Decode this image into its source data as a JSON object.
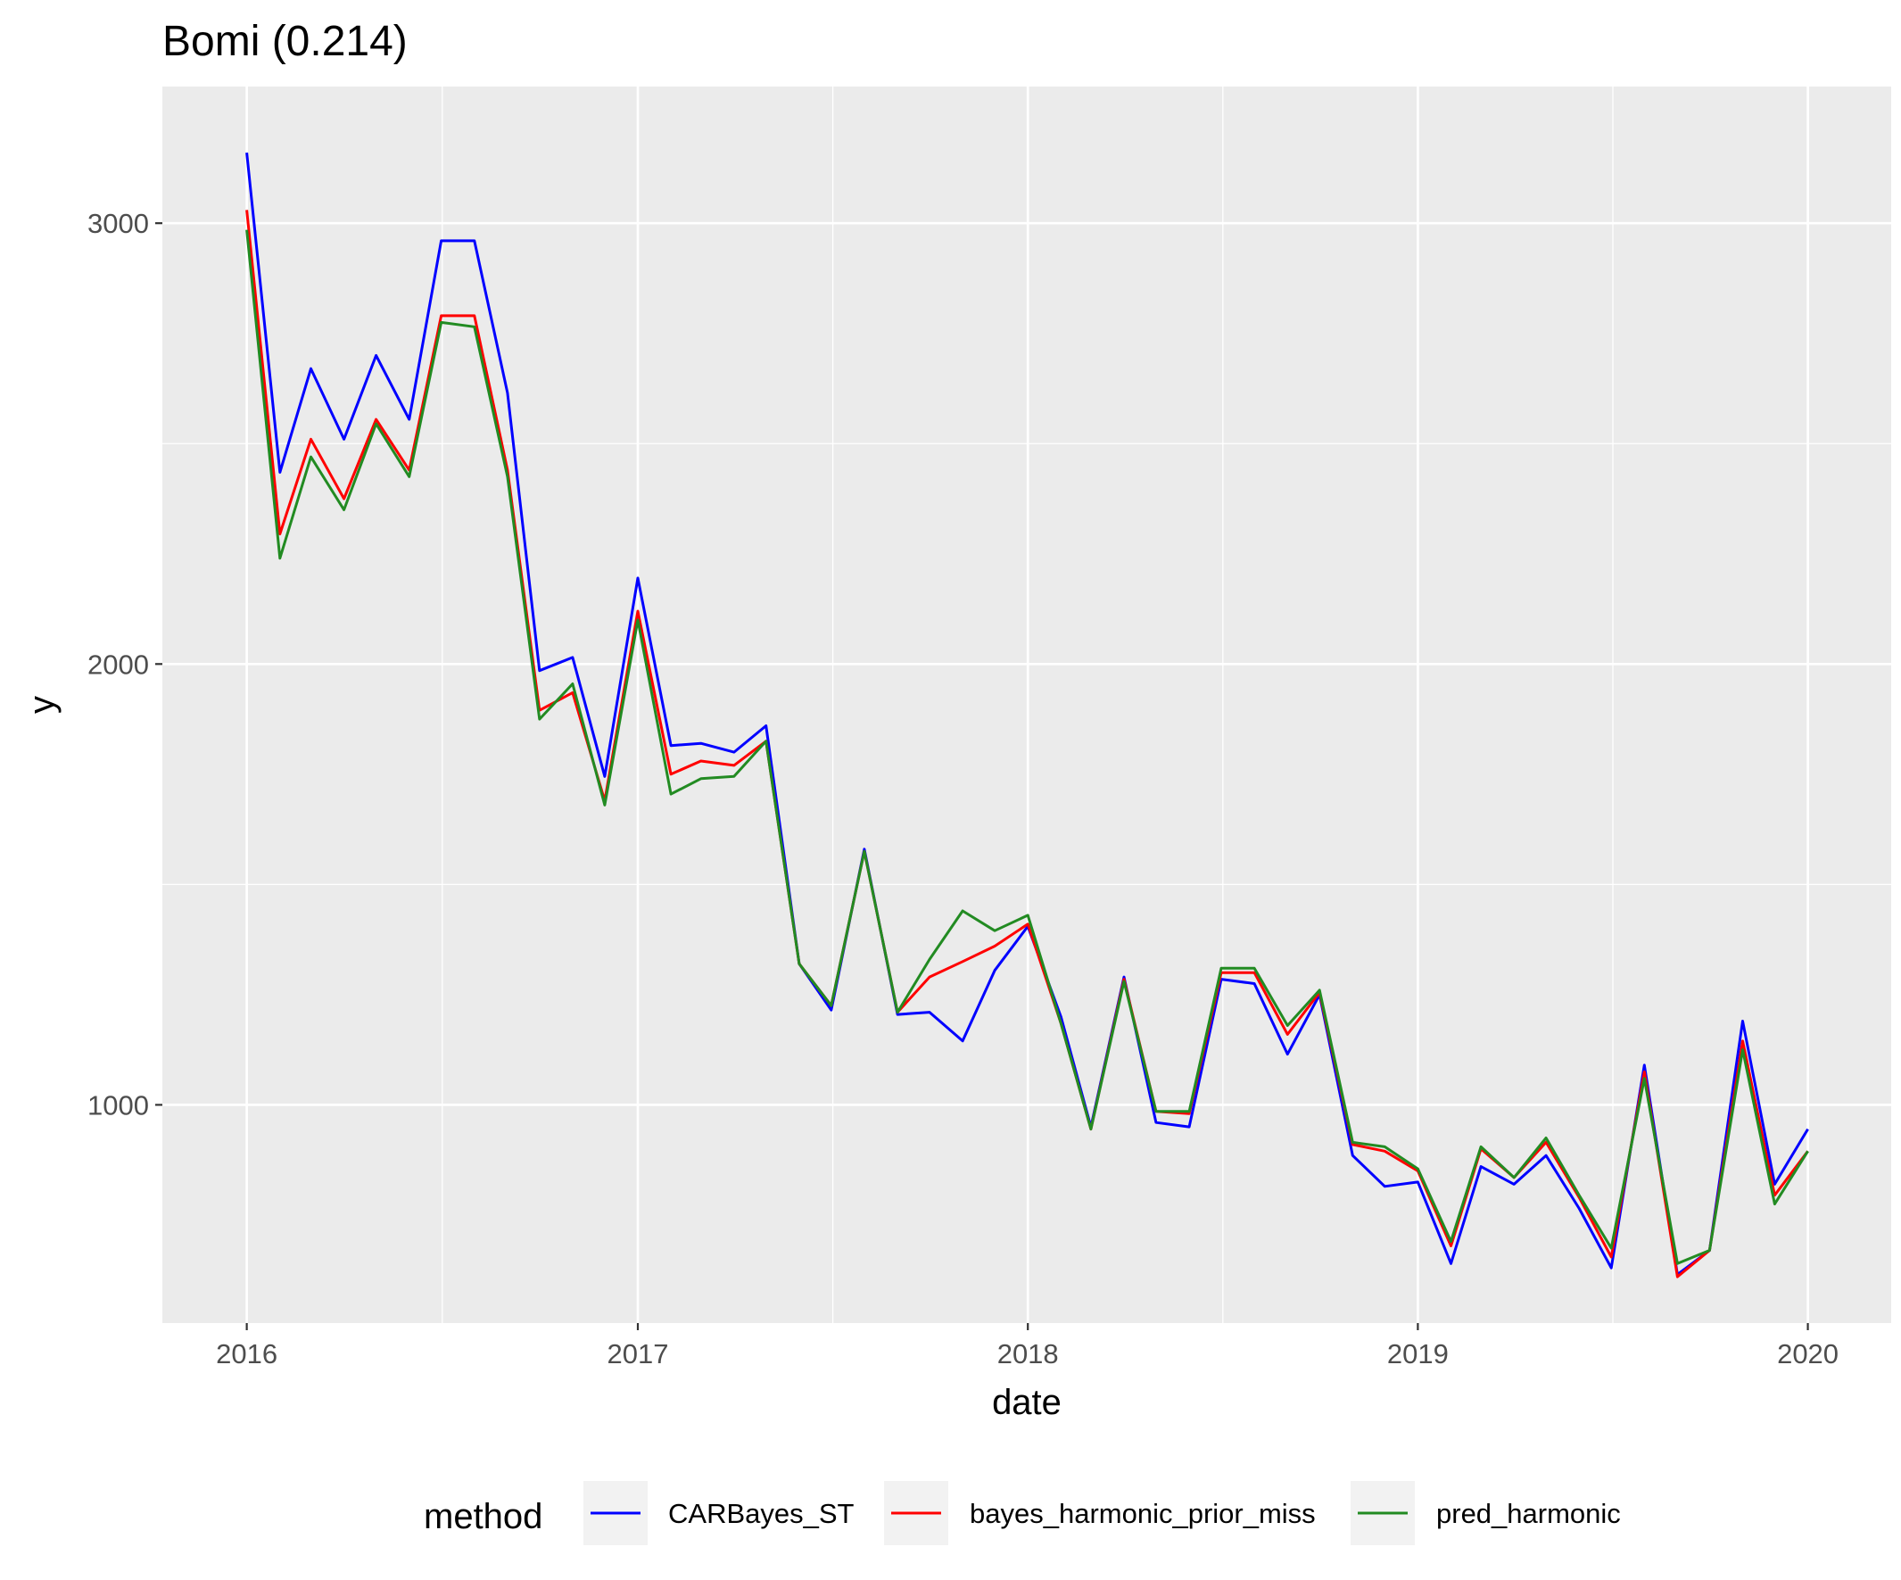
{
  "chart_data": {
    "type": "line",
    "title": "Bomi (0.214)",
    "xlabel": "date",
    "ylabel": "y",
    "xlim": [
      "2015-10-14",
      "2020-03-19"
    ],
    "ylim": [
      505,
      3310
    ],
    "x_ticks": [
      "2016-01-01",
      "2017-01-01",
      "2018-01-01",
      "2019-01-01",
      "2020-01-01"
    ],
    "x_tick_labels": [
      "2016",
      "2017",
      "2018",
      "2019",
      "2020"
    ],
    "y_ticks": [
      1000,
      2000,
      3000
    ],
    "y_tick_labels": [
      "1000",
      "2000",
      "3000"
    ],
    "grid": true,
    "legend": {
      "title": "method",
      "position": "bottom"
    },
    "x": [
      "2016-01-01",
      "2016-02-01",
      "2016-03-01",
      "2016-04-01",
      "2016-05-01",
      "2016-06-01",
      "2016-07-01",
      "2016-08-01",
      "2016-09-01",
      "2016-10-01",
      "2016-11-01",
      "2016-12-01",
      "2017-01-01",
      "2017-02-01",
      "2017-03-01",
      "2017-04-01",
      "2017-05-01",
      "2017-06-01",
      "2017-07-01",
      "2017-08-01",
      "2017-09-01",
      "2017-10-01",
      "2017-11-01",
      "2017-12-01",
      "2018-01-01",
      "2018-02-01",
      "2018-03-01",
      "2018-04-01",
      "2018-05-01",
      "2018-06-01",
      "2018-07-01",
      "2018-08-01",
      "2018-09-01",
      "2018-10-01",
      "2018-11-01",
      "2018-12-01",
      "2019-01-01",
      "2019-02-01",
      "2019-03-01",
      "2019-04-01",
      "2019-05-01",
      "2019-06-01",
      "2019-07-01",
      "2019-08-01",
      "2019-09-01",
      "2019-10-01",
      "2019-11-01",
      "2019-12-01",
      "2020-01-01"
    ],
    "series": [
      {
        "name": "CARBayes_ST",
        "color": "#0000ff",
        "values": [
          3160,
          2435,
          2670,
          2510,
          2700,
          2555,
          2960,
          2960,
          2615,
          1985,
          2015,
          1745,
          2195,
          1815,
          1820,
          1800,
          1860,
          1320,
          1215,
          1580,
          1205,
          1210,
          1145,
          1305,
          1405,
          1200,
          950,
          1290,
          960,
          950,
          1285,
          1275,
          1115,
          1250,
          885,
          815,
          825,
          640,
          860,
          820,
          885,
          765,
          630,
          1090,
          615,
          670,
          1190,
          820,
          945
        ]
      },
      {
        "name": "bayes_harmonic_prior_miss",
        "color": "#ff0000",
        "values": [
          3030,
          2295,
          2510,
          2375,
          2555,
          2440,
          2790,
          2790,
          2440,
          1895,
          1935,
          1690,
          2120,
          1750,
          1780,
          1770,
          1825,
          1320,
          1225,
          1575,
          1210,
          1290,
          1325,
          1360,
          1410,
          1185,
          945,
          1285,
          985,
          980,
          1300,
          1300,
          1160,
          1255,
          910,
          895,
          850,
          680,
          900,
          835,
          915,
          790,
          655,
          1075,
          610,
          670,
          1145,
          795,
          895
        ]
      },
      {
        "name": "pred_harmonic",
        "color": "#228b22",
        "values": [
          2985,
          2240,
          2470,
          2350,
          2545,
          2425,
          2775,
          2765,
          2425,
          1875,
          1955,
          1680,
          2100,
          1705,
          1740,
          1745,
          1825,
          1320,
          1225,
          1575,
          1210,
          1330,
          1440,
          1395,
          1430,
          1185,
          945,
          1280,
          985,
          985,
          1310,
          1310,
          1180,
          1260,
          915,
          905,
          855,
          690,
          905,
          835,
          925,
          795,
          675,
          1060,
          640,
          670,
          1125,
          775,
          895
        ]
      }
    ]
  }
}
